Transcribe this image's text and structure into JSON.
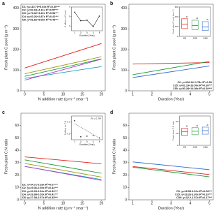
{
  "chart_data": [
    {
      "type": "line",
      "panel": "a",
      "x_label": "N addition rate (g m⁻² year⁻¹)",
      "y_label": "Fresh plant C pool (g m⁻²)",
      "xlim": [
        -1,
        21
      ],
      "xticks": [
        0,
        5,
        10,
        15,
        20
      ],
      "ylim": [
        0,
        420
      ],
      "yticks": [
        0,
        100,
        200,
        300,
        400
      ],
      "legend": "upper left",
      "series": [
        {
          "name": "D1: y=110.76+5.92x R²=0.30***",
          "color": "#e0201b",
          "x": [
            0,
            20
          ],
          "values": [
            110.76,
            229.16
          ]
        },
        {
          "name": "D2: y=82.94+4.11x R²=0.57***",
          "color": "#9a9a10",
          "x": [
            0,
            20
          ],
          "values": [
            82.94,
            165.14
          ]
        },
        {
          "name": "D3: y=70.32+4.22x R²=0.54***",
          "color": "#1c9a3a",
          "x": [
            0,
            20
          ],
          "values": [
            70.32,
            154.72
          ]
        },
        {
          "name": "D4: y=60.26+2.87x R²=0.41***",
          "color": "#1aa0c0",
          "x": [
            0,
            20
          ],
          "values": [
            60.26,
            117.66
          ]
        },
        {
          "name": "D5: y=51.82+5.08x R²=0.45***",
          "color": "#b040c8",
          "x": [
            0,
            20
          ],
          "values": [
            51.82,
            153.42
          ]
        }
      ],
      "inset": {
        "type": "line",
        "x_label": "Duration (Year)",
        "y_label": "N effect on C pool",
        "xlim": [
          0.5,
          5.5
        ],
        "xticks": [
          1,
          2,
          3,
          4,
          5
        ],
        "ylim": [
          2,
          7
        ],
        "yticks": [
          3,
          5,
          7
        ],
        "color": "#333333",
        "x": [
          1,
          2,
          3,
          4,
          5
        ],
        "values": [
          5.92,
          4.11,
          4.22,
          2.87,
          5.08
        ]
      }
    },
    {
      "type": "line",
      "panel": "b",
      "x_label": "Duration (Year)",
      "y_label": "Fresh plant C pool (g m⁻²)",
      "xlim": [
        0.8,
        5.2
      ],
      "xticks": [
        1,
        2,
        3,
        4,
        5
      ],
      "ylim": [
        0,
        420
      ],
      "yticks": [
        0,
        100,
        200,
        300,
        400
      ],
      "legend": "lower right",
      "series": [
        {
          "name": "C0: y=128.14+1.78x R²=0.00",
          "color": "#e0201b",
          "x": [
            1,
            5
          ],
          "values": [
            129.92,
            137.04
          ]
        },
        {
          "name": "C25: y=62.19+16.09x R²=0.30***",
          "color": "#1c9a3a",
          "x": [
            1,
            5
          ],
          "values": [
            78.28,
            142.64
          ]
        },
        {
          "name": "C50: y=50.28+14.08x R²=0.30***",
          "color": "#3a70d0",
          "x": [
            1,
            5
          ],
          "values": [
            64.36,
            120.68
          ]
        }
      ],
      "inset": {
        "type": "box",
        "y_label": "Fresh plant C pool (g m⁻²)",
        "ylim": [
          0,
          300
        ],
        "yticks": [
          0,
          100,
          200,
          300
        ],
        "boxes": [
          {
            "name": "C0",
            "letter": "a",
            "color": "#e0201b",
            "q1": 80,
            "median": 125,
            "q3": 180
          },
          {
            "name": "C25",
            "letter": "a",
            "color": "#1c9a3a",
            "q1": 70,
            "median": 110,
            "q3": 165
          },
          {
            "name": "C50",
            "letter": "a",
            "color": "#3a70d0",
            "q1": 60,
            "median": 95,
            "q3": 150
          }
        ]
      }
    },
    {
      "type": "line",
      "panel": "c",
      "x_label": "N addition rate (g m⁻² year⁻¹)",
      "y_label": "Fresh plant C:N ratio",
      "xlim": [
        -1,
        21
      ],
      "xticks": [
        0,
        5,
        10,
        15,
        20
      ],
      "ylim": [
        0,
        70
      ],
      "yticks": [
        0,
        10,
        20,
        30,
        40,
        50,
        60
      ],
      "legend": "lower left",
      "series": [
        {
          "name": "D1: y=34.71-0.28x R²=0.07***",
          "color": "#e0201b",
          "x": [
            0,
            20
          ],
          "values": [
            34.71,
            29.11
          ]
        },
        {
          "name": "D2: y=29.36-0.55x R²=0.44***",
          "color": "#9a9a10",
          "x": [
            0,
            20
          ],
          "values": [
            29.36,
            18.36
          ]
        },
        {
          "name": "D3: y=32.29-0.54x R²=0.43***",
          "color": "#1c9a3a",
          "x": [
            0,
            20
          ],
          "values": [
            32.29,
            21.49
          ]
        },
        {
          "name": "D4: y=26.98-0.53x R²=0.41***",
          "color": "#1aa0c0",
          "x": [
            0,
            20
          ],
          "values": [
            26.98,
            16.38
          ]
        },
        {
          "name": "D5: y=27.08-0.57x R²=0.45***",
          "color": "#b040c8",
          "x": [
            0,
            20
          ],
          "values": [
            27.08,
            15.68
          ]
        }
      ],
      "inset": {
        "type": "scatter",
        "x_label": "Duration (Year)",
        "y_label": "N effect on C:N",
        "note": "R² = 0.79*",
        "xlim": [
          0.5,
          5.5
        ],
        "xticks": [
          1,
          2,
          3,
          4,
          5
        ],
        "ylim": [
          -0.6,
          -0.2
        ],
        "yticks": [
          -0.5,
          -0.3
        ],
        "color": "#333333",
        "x": [
          1,
          2,
          3,
          4,
          5
        ],
        "values": [
          -0.28,
          -0.55,
          -0.54,
          -0.53,
          -0.57
        ],
        "fit": [
          -0.33,
          -0.57
        ]
      }
    },
    {
      "type": "line",
      "panel": "d",
      "x_label": "Duration (Year)",
      "y_label": "Fresh plant C:N ratio",
      "xlim": [
        0.8,
        5.2
      ],
      "xticks": [
        1,
        2,
        3,
        4,
        5
      ],
      "ylim": [
        0,
        70
      ],
      "yticks": [
        0,
        10,
        20,
        30,
        40,
        50,
        60
      ],
      "legend": "lower right",
      "series": [
        {
          "name": "C0: y=28.53-1.62x R²=0.08***",
          "color": "#e0201b",
          "x": [
            1,
            5
          ],
          "values": [
            26.91,
            20.43
          ]
        },
        {
          "name": "C25: y=28.26-1.93x R²=0.10***",
          "color": "#1c9a3a",
          "x": [
            1,
            5
          ],
          "values": [
            26.33,
            18.61
          ]
        },
        {
          "name": "C50: y=32.2-1.57x R²=0.17***",
          "color": "#3a70d0",
          "x": [
            1,
            5
          ],
          "values": [
            30.63,
            24.35
          ]
        }
      ],
      "inset": {
        "type": "box",
        "y_label": "Fresh plant C:N ratio",
        "ylim": [
          0,
          50
        ],
        "yticks": [
          0,
          20,
          40
        ],
        "boxes": [
          {
            "name": "C0",
            "letter": "a",
            "color": "#e0201b",
            "q1": 17,
            "median": 23,
            "q3": 29
          },
          {
            "name": "C25",
            "letter": "a",
            "color": "#1c9a3a",
            "q1": 18,
            "median": 24,
            "q3": 30
          },
          {
            "name": "C50",
            "letter": "a",
            "color": "#3a70d0",
            "q1": 19,
            "median": 25,
            "q3": 31
          }
        ]
      }
    }
  ]
}
